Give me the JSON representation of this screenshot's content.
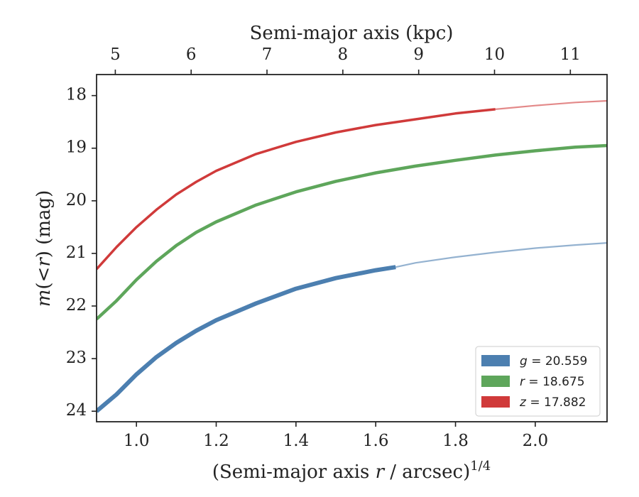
{
  "chart_data": {
    "type": "line",
    "xlabel": "(Semi-major axis r / arcsec)",
    "xlabel_italic_var": "r",
    "xlabel_superscript": "1/4",
    "ylabel": "m(<r) (mag)",
    "top_xlabel": "Semi-major axis (kpc)",
    "xlim": [
      0.9,
      2.18
    ],
    "ylim": [
      24.2,
      17.6
    ],
    "y_inverted": true,
    "xticks": [
      1.0,
      1.2,
      1.4,
      1.6,
      1.8,
      2.0
    ],
    "xtick_labels": [
      "1.0",
      "1.2",
      "1.4",
      "1.6",
      "1.8",
      "2.0"
    ],
    "yticks": [
      18,
      19,
      20,
      21,
      22,
      23,
      24
    ],
    "ytick_labels": [
      "18",
      "19",
      "20",
      "21",
      "22",
      "23",
      "24"
    ],
    "top_ticks_kpc": [
      5,
      6,
      7,
      8,
      9,
      10,
      11
    ],
    "top_tick_labels": [
      "5",
      "6",
      "7",
      "8",
      "9",
      "10",
      "11"
    ],
    "kpc_at_x": {
      "x1": 0.947,
      "kpc1": 5,
      "x2": 2.088,
      "kpc2": 11
    },
    "grid": false,
    "legend_position": "bottom-right",
    "series": [
      {
        "name": "g = 20.559",
        "legend_var": "g",
        "legend_value": "20.559",
        "color": "#4c7fb0",
        "measured_until": 1.65,
        "x": [
          0.9,
          0.95,
          1.0,
          1.05,
          1.1,
          1.15,
          1.2,
          1.3,
          1.4,
          1.5,
          1.6,
          1.65,
          1.7,
          1.8,
          1.9,
          2.0,
          2.1,
          2.18
        ],
        "y": [
          24.0,
          23.68,
          23.3,
          22.97,
          22.7,
          22.47,
          22.27,
          21.95,
          21.67,
          21.47,
          21.32,
          21.26,
          21.18,
          21.07,
          20.98,
          20.9,
          20.84,
          20.8
        ]
      },
      {
        "name": "r = 18.675",
        "legend_var": "r",
        "legend_value": "18.675",
        "color": "#5ea65b",
        "measured_until": 2.18,
        "x": [
          0.9,
          0.95,
          1.0,
          1.05,
          1.1,
          1.15,
          1.2,
          1.3,
          1.4,
          1.5,
          1.6,
          1.7,
          1.8,
          1.9,
          2.0,
          2.1,
          2.18
        ],
        "y": [
          22.25,
          21.9,
          21.5,
          21.15,
          20.85,
          20.6,
          20.4,
          20.08,
          19.83,
          19.63,
          19.47,
          19.34,
          19.23,
          19.13,
          19.05,
          18.98,
          18.95
        ]
      },
      {
        "name": "z = 17.882",
        "legend_var": "z",
        "legend_value": "17.882",
        "color": "#d03a3a",
        "measured_until": 1.9,
        "x": [
          0.9,
          0.95,
          1.0,
          1.05,
          1.1,
          1.15,
          1.2,
          1.3,
          1.4,
          1.5,
          1.6,
          1.7,
          1.8,
          1.9,
          2.0,
          2.1,
          2.18
        ],
        "y": [
          21.3,
          20.88,
          20.5,
          20.17,
          19.88,
          19.64,
          19.43,
          19.11,
          18.88,
          18.7,
          18.56,
          18.45,
          18.34,
          18.26,
          18.19,
          18.13,
          18.1
        ]
      }
    ]
  }
}
